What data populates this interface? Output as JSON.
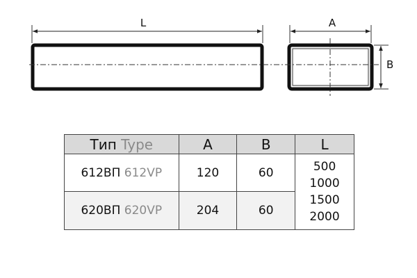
{
  "drawing": {
    "dim_length": "L",
    "dim_width": "A",
    "dim_height": "B"
  },
  "table": {
    "headers": {
      "type_ru": "Тип",
      "type_en": "Type",
      "a": "A",
      "b": "B",
      "l": "L"
    },
    "rows": [
      {
        "type_ru": "612ВП",
        "type_en": "612VP",
        "a": "120",
        "b": "60"
      },
      {
        "type_ru": "620ВП",
        "type_en": "620VP",
        "a": "204",
        "b": "60"
      }
    ],
    "lengths": [
      "500",
      "1000",
      "1500",
      "2000"
    ]
  }
}
